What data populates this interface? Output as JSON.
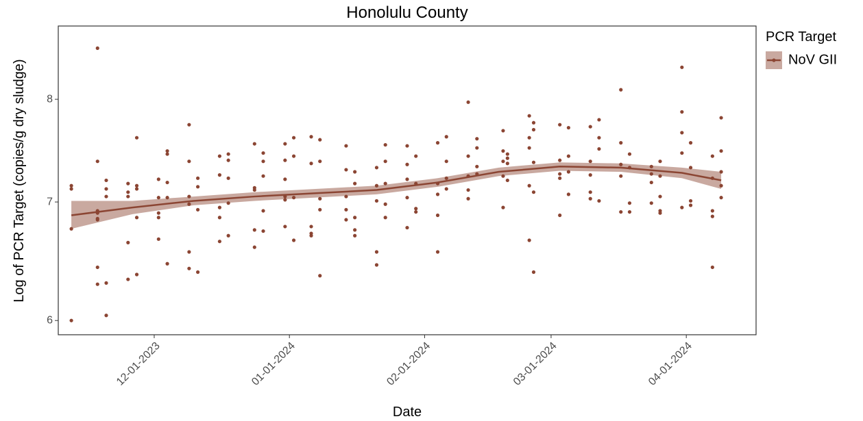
{
  "chart_data": {
    "type": "scatter",
    "title": "Honolulu County",
    "xlabel": "Date",
    "ylabel": "Log of PCR Target (copies/g dry sludge)",
    "legend_title": "PCR Target",
    "log_y": true,
    "grid": false,
    "xlim": [
      "2023-11-09",
      "2024-04-17"
    ],
    "xticks": [
      {
        "value": "2023-12-01",
        "label": "12-01-2023"
      },
      {
        "value": "2024-01-01",
        "label": "01-01-2024"
      },
      {
        "value": "2024-02-01",
        "label": "02-01-2024"
      },
      {
        "value": "2024-03-01",
        "label": "03-01-2024"
      },
      {
        "value": "2024-04-01",
        "label": "04-01-2024"
      }
    ],
    "ylim": [
      5.89,
      8.8
    ],
    "yticks": [
      6,
      7,
      8
    ],
    "series": [
      {
        "name": "NoV GII",
        "color": "#8b4533",
        "x": [
          "2023-11-12",
          "2023-11-12",
          "2023-11-12",
          "2023-11-12",
          "2023-11-18",
          "2023-11-18",
          "2023-11-18",
          "2023-11-18",
          "2023-11-18",
          "2023-11-18",
          "2023-11-18",
          "2023-11-18",
          "2023-11-20",
          "2023-11-20",
          "2023-11-20",
          "2023-11-20",
          "2023-11-20",
          "2023-11-25",
          "2023-11-25",
          "2023-11-25",
          "2023-11-25",
          "2023-11-25",
          "2023-11-27",
          "2023-11-27",
          "2023-11-27",
          "2023-11-27",
          "2023-11-27",
          "2023-12-02",
          "2023-12-02",
          "2023-12-02",
          "2023-12-02",
          "2023-12-02",
          "2023-12-04",
          "2023-12-04",
          "2023-12-04",
          "2023-12-04",
          "2023-12-04",
          "2023-12-09",
          "2023-12-09",
          "2023-12-09",
          "2023-12-09",
          "2023-12-09",
          "2023-12-09",
          "2023-12-11",
          "2023-12-11",
          "2023-12-11",
          "2023-12-11",
          "2023-12-16",
          "2023-12-16",
          "2023-12-16",
          "2023-12-16",
          "2023-12-16",
          "2023-12-18",
          "2023-12-18",
          "2023-12-18",
          "2023-12-18",
          "2023-12-18",
          "2023-12-24",
          "2023-12-24",
          "2023-12-24",
          "2023-12-24",
          "2023-12-24",
          "2023-12-26",
          "2023-12-26",
          "2023-12-26",
          "2023-12-26",
          "2023-12-26",
          "2023-12-31",
          "2023-12-31",
          "2023-12-31",
          "2023-12-31",
          "2023-12-31",
          "2023-12-31",
          "2024-01-02",
          "2024-01-02",
          "2024-01-02",
          "2024-01-02",
          "2024-01-06",
          "2024-01-06",
          "2024-01-06",
          "2024-01-06",
          "2024-01-06",
          "2024-01-08",
          "2024-01-08",
          "2024-01-08",
          "2024-01-08",
          "2024-01-08",
          "2024-01-14",
          "2024-01-14",
          "2024-01-14",
          "2024-01-14",
          "2024-01-14",
          "2024-01-16",
          "2024-01-16",
          "2024-01-16",
          "2024-01-16",
          "2024-01-16",
          "2024-01-21",
          "2024-01-21",
          "2024-01-21",
          "2024-01-21",
          "2024-01-21",
          "2024-01-23",
          "2024-01-23",
          "2024-01-23",
          "2024-01-23",
          "2024-01-23",
          "2024-01-28",
          "2024-01-28",
          "2024-01-28",
          "2024-01-28",
          "2024-01-28",
          "2024-01-30",
          "2024-01-30",
          "2024-01-30",
          "2024-01-30",
          "2024-02-04",
          "2024-02-04",
          "2024-02-04",
          "2024-02-04",
          "2024-02-04",
          "2024-02-06",
          "2024-02-06",
          "2024-02-06",
          "2024-02-06",
          "2024-02-11",
          "2024-02-11",
          "2024-02-11",
          "2024-02-11",
          "2024-02-11",
          "2024-02-13",
          "2024-02-13",
          "2024-02-13",
          "2024-02-13",
          "2024-02-19",
          "2024-02-19",
          "2024-02-19",
          "2024-02-19",
          "2024-02-19",
          "2024-02-20",
          "2024-02-20",
          "2024-02-20",
          "2024-02-20",
          "2024-02-25",
          "2024-02-25",
          "2024-02-25",
          "2024-02-25",
          "2024-02-25",
          "2024-02-26",
          "2024-02-26",
          "2024-02-26",
          "2024-02-26",
          "2024-02-26",
          "2024-03-03",
          "2024-03-03",
          "2024-03-03",
          "2024-03-03",
          "2024-03-03",
          "2024-03-05",
          "2024-03-05",
          "2024-03-05",
          "2024-03-05",
          "2024-03-10",
          "2024-03-10",
          "2024-03-10",
          "2024-03-10",
          "2024-03-10",
          "2024-03-12",
          "2024-03-12",
          "2024-03-12",
          "2024-03-12",
          "2024-03-17",
          "2024-03-17",
          "2024-03-17",
          "2024-03-17",
          "2024-03-17",
          "2024-03-19",
          "2024-03-19",
          "2024-03-19",
          "2024-03-19",
          "2024-03-24",
          "2024-03-24",
          "2024-03-24",
          "2024-03-24",
          "2024-03-26",
          "2024-03-26",
          "2024-03-26",
          "2024-03-26",
          "2024-03-26",
          "2024-03-31",
          "2024-03-31",
          "2024-03-31",
          "2024-03-31",
          "2024-03-31",
          "2024-04-02",
          "2024-04-02",
          "2024-04-02",
          "2024-04-02",
          "2024-04-07",
          "2024-04-07",
          "2024-04-07",
          "2024-04-07",
          "2024-04-07",
          "2024-04-09",
          "2024-04-09",
          "2024-04-09",
          "2024-04-09",
          "2024-04-09"
        ],
        "values": [
          7.15,
          7.12,
          6.76,
          6.0,
          8.55,
          7.38,
          6.92,
          6.9,
          6.85,
          6.84,
          6.43,
          6.29,
          7.2,
          7.12,
          7.05,
          6.3,
          6.04,
          7.17,
          7.09,
          7.05,
          6.64,
          6.33,
          7.61,
          7.15,
          7.12,
          6.86,
          6.37,
          7.21,
          7.04,
          6.9,
          6.86,
          6.67,
          7.48,
          7.45,
          7.18,
          7.04,
          6.46,
          7.74,
          7.38,
          7.05,
          6.98,
          6.56,
          6.42,
          7.22,
          7.14,
          6.93,
          6.39,
          7.43,
          7.25,
          6.95,
          6.86,
          6.65,
          7.45,
          7.39,
          7.22,
          6.99,
          6.7,
          7.55,
          7.13,
          7.11,
          6.75,
          6.6,
          7.46,
          7.38,
          7.24,
          6.92,
          6.74,
          7.55,
          7.39,
          7.21,
          7.05,
          7.02,
          6.78,
          7.61,
          7.43,
          7.04,
          6.66,
          7.62,
          7.36,
          6.78,
          6.72,
          6.7,
          7.59,
          7.38,
          7.03,
          6.93,
          6.36,
          7.53,
          7.3,
          7.05,
          6.93,
          6.84,
          7.28,
          7.17,
          6.86,
          6.75,
          6.7,
          7.32,
          7.15,
          7.01,
          6.56,
          6.45,
          7.54,
          7.38,
          7.17,
          6.98,
          6.86,
          7.53,
          7.35,
          7.21,
          7.04,
          6.77,
          7.43,
          7.17,
          6.94,
          6.91,
          7.56,
          7.17,
          7.07,
          6.88,
          6.56,
          7.62,
          7.38,
          7.22,
          7.12,
          7.97,
          7.43,
          7.24,
          7.11,
          7.03,
          7.6,
          7.51,
          7.33,
          7.26,
          7.68,
          7.48,
          7.38,
          7.24,
          6.95,
          7.45,
          7.41,
          7.36,
          7.2,
          7.83,
          7.61,
          7.51,
          7.15,
          6.66,
          7.76,
          7.69,
          7.37,
          7.09,
          6.39,
          7.74,
          7.39,
          7.26,
          7.22,
          6.88,
          7.71,
          7.43,
          7.28,
          7.07,
          7.72,
          7.38,
          7.25,
          7.09,
          7.03,
          7.79,
          7.61,
          7.5,
          7.01,
          8.1,
          7.56,
          7.35,
          7.24,
          6.91,
          7.45,
          7.32,
          6.99,
          6.91,
          7.33,
          7.26,
          7.18,
          6.99,
          7.38,
          7.24,
          7.05,
          6.92,
          6.9,
          8.34,
          7.87,
          7.66,
          7.46,
          6.95,
          7.56,
          7.32,
          7.01,
          6.97,
          7.43,
          7.22,
          6.92,
          6.87,
          6.43,
          7.81,
          7.48,
          7.28,
          7.15,
          7.04
        ]
      }
    ],
    "trend": {
      "color": "#8b4533",
      "band_color": "#c9a9a0",
      "x": [
        "2023-11-12",
        "2023-11-26",
        "2023-12-10",
        "2023-12-24",
        "2024-01-07",
        "2024-01-21",
        "2024-02-04",
        "2024-02-18",
        "2024-03-03",
        "2024-03-17",
        "2024-03-31",
        "2024-04-09"
      ],
      "values": [
        6.88,
        6.95,
        7.01,
        7.05,
        7.08,
        7.11,
        7.18,
        7.28,
        7.33,
        7.32,
        7.27,
        7.2
      ],
      "lower": [
        6.76,
        6.89,
        6.97,
        7.01,
        7.04,
        7.07,
        7.14,
        7.24,
        7.29,
        7.28,
        7.22,
        7.12
      ],
      "upper": [
        7.01,
        7.01,
        7.05,
        7.09,
        7.12,
        7.15,
        7.22,
        7.32,
        7.37,
        7.36,
        7.32,
        7.28
      ]
    }
  }
}
